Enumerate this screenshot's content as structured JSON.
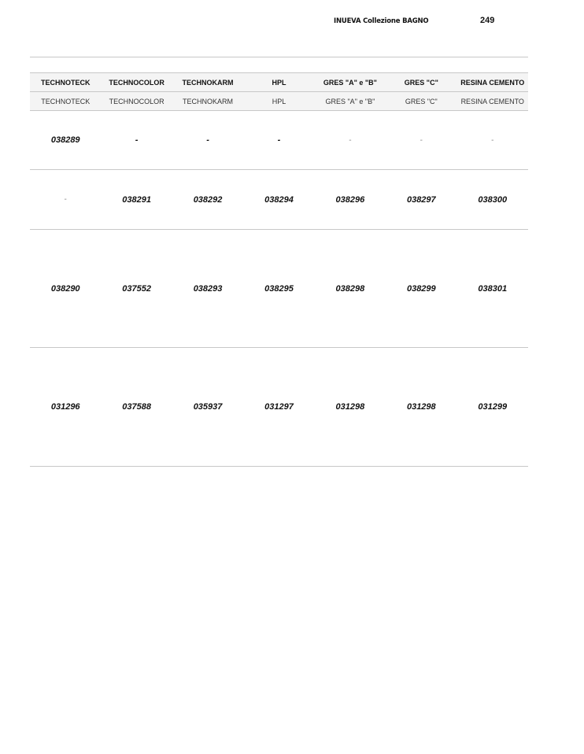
{
  "header": {
    "title": "INUEVA Collezione BAGNO",
    "page_number": "249"
  },
  "table": {
    "columns": [
      "TECHNOTECK",
      "TECHNOCOLOR",
      "TECHNOKARM",
      "HPL",
      "GRES \"A\" e \"B\"",
      "GRES \"C\"",
      "RESINA CEMENTO"
    ],
    "subheader": [
      "TECHNOTECK",
      "TECHNOCOLOR",
      "TECHNOKARM",
      "HPL",
      "GRES \"A\" e \"B\"",
      "GRES \"C\"",
      "RESINA CEMENTO"
    ],
    "rows": [
      [
        "038289",
        "-",
        "-",
        "-",
        "-",
        "-",
        "-"
      ],
      [
        "-",
        "038291",
        "038292",
        "038294",
        "038296",
        "038297",
        "038300"
      ],
      [
        "038290",
        "037552",
        "038293",
        "038295",
        "038298",
        "038299",
        "038301"
      ],
      [
        "031296",
        "037588",
        "035937",
        "031297",
        "031298",
        "031298",
        "031299"
      ]
    ]
  }
}
